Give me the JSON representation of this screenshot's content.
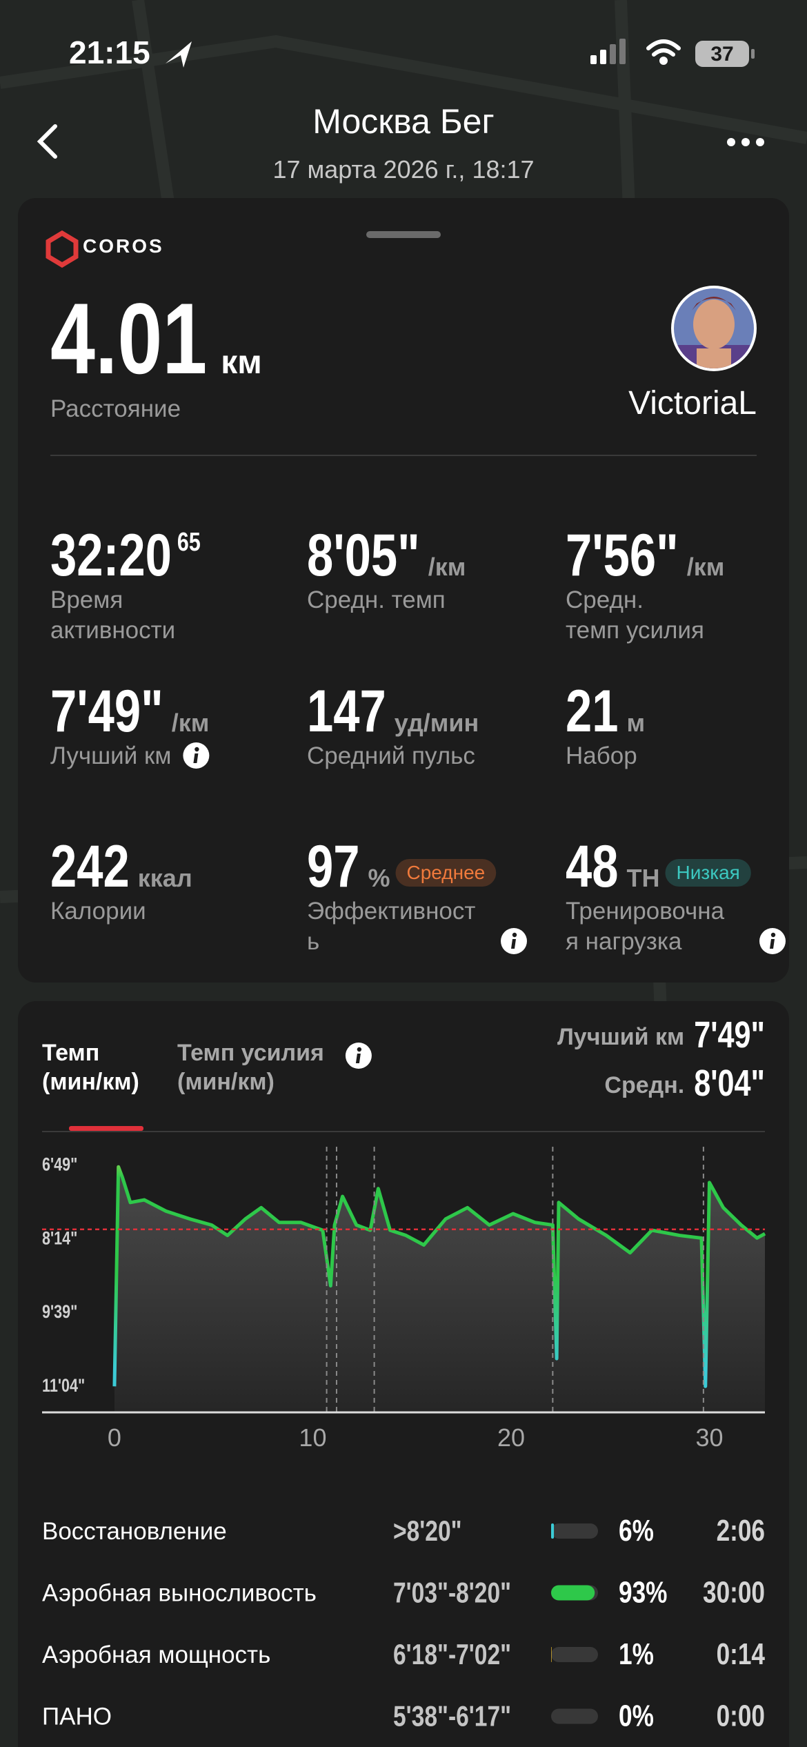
{
  "status_bar": {
    "time": "21:15",
    "battery": "37"
  },
  "header": {
    "title": "Москва Бег",
    "date": "17 марта 2026 г., 18:17"
  },
  "summary": {
    "brand": "COROS",
    "distance": "4.01",
    "distance_unit": "км",
    "distance_label": "Расстояние",
    "user": "VictoriaL"
  },
  "stats": [
    {
      "value": "32:20",
      "sup": "65",
      "label": [
        "Время",
        "активности"
      ]
    },
    {
      "value": "8'05\"",
      "unit": "/км",
      "label": [
        "Средн. темп"
      ]
    },
    {
      "value": "7'56\"",
      "unit": "/км",
      "label": [
        "Средн.",
        "темп усилия"
      ]
    },
    {
      "value": "7'49\"",
      "unit": "/км",
      "label": [
        "Лучший км"
      ],
      "info": true
    },
    {
      "value": "147",
      "unit": "уд/мин",
      "label": [
        "Средний пульс"
      ]
    },
    {
      "value": "21",
      "unit": "м",
      "label": [
        "Набор"
      ]
    },
    {
      "value": "242",
      "unit": "ккал",
      "label": [
        "Калории"
      ]
    },
    {
      "value": "97",
      "unit": "%",
      "badge": "Среднее",
      "badge_color": "#f07a3c",
      "label": [
        "Эффективност",
        "ь"
      ],
      "info": true
    },
    {
      "value": "48",
      "unit": "ТН",
      "badge": "Низкая",
      "badge_color": "#3cc8c0",
      "label": [
        "Тренировочна",
        "я нагрузка"
      ],
      "info": true
    }
  ],
  "tabs": [
    {
      "label": [
        "Темп",
        "(мин/км)"
      ],
      "active": true
    },
    {
      "label": [
        "Темп усилия",
        "(мин/км)"
      ],
      "info": true
    }
  ],
  "chart_data": {
    "type": "line",
    "best_label": "Лучший км",
    "best": "7'49\"",
    "average_label": "Средн.",
    "average": {
      "value": 484,
      "label": "8'04\""
    },
    "average_color": "#e0303a",
    "xlim": [
      -3.65,
      32.8
    ],
    "xticks": [
      0,
      10,
      20,
      30
    ],
    "ylim": [
      695,
      376
    ],
    "yticks": [
      {
        "value": 409,
        "label": "6'49\""
      },
      {
        "value": 494,
        "label": "8'14\""
      },
      {
        "value": 579,
        "label": "9'39\""
      },
      {
        "value": 664,
        "label": "11'04\""
      }
    ],
    "x": [
      0,
      0.2,
      0.4,
      0.8,
      1.5,
      2.6,
      3.8,
      4.9,
      5.7,
      6.6,
      7.4,
      8.3,
      9.4,
      10.5,
      10.9,
      11.1,
      11.5,
      12.2,
      12.9,
      13.3,
      13.9,
      14.7,
      15.6,
      16.7,
      17.8,
      18.9,
      20.1,
      21.2,
      22.1,
      22.3,
      22.4,
      23.4,
      24.8,
      26.0,
      27.1,
      28.5,
      29.6,
      29.8,
      30.0,
      30.7,
      31.6,
      32.4,
      32.8
    ],
    "series": [
      {
        "color": "#2ec84a",
        "top_color": "#f3e35a",
        "bottom_color": "#3ccbd6",
        "values": [
          665,
          412,
          424,
          453,
          450,
          463,
          472,
          479,
          491,
          472,
          459,
          476,
          476,
          485,
          549,
          479,
          446,
          479,
          485,
          437,
          485,
          491,
          502,
          472,
          459,
          479,
          466,
          476,
          479,
          633,
          453,
          472,
          491,
          511,
          485,
          491,
          494,
          665,
          430,
          459,
          479,
          494,
          489
        ]
      }
    ],
    "pauses": [
      10.7,
      11.2,
      13.1,
      22.1,
      29.7
    ]
  },
  "zones": {
    "names": [
      "Восстановление",
      "Аэробная выносливость",
      "Аэробная мощность",
      "ПАНО"
    ],
    "ranges": [
      ">8'20\"",
      "7'03\"-8'20\"",
      "6'18\"-7'02\"",
      "5'38\"-6'17\""
    ],
    "values": [
      6,
      93,
      1,
      0
    ],
    "value_labels": [
      "6%",
      "93%",
      "1%",
      "0%"
    ],
    "times": [
      "2:06",
      "30:00",
      "0:14",
      "0:00"
    ],
    "colors": [
      "#3ccbd6",
      "#2ec84a",
      "#f0c030",
      "#f07a3c"
    ]
  }
}
